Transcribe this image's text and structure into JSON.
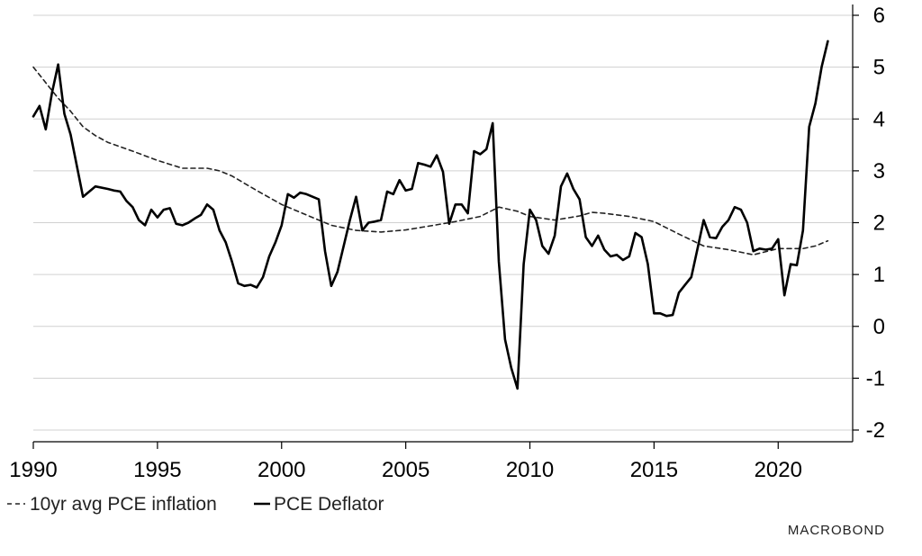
{
  "chart_data": {
    "type": "line",
    "title": "",
    "xlabel": "",
    "ylabel": "",
    "xlim": [
      1990,
      2023
    ],
    "ylim": [
      -2,
      6
    ],
    "x_ticks": [
      1990,
      1995,
      2000,
      2005,
      2010,
      2015,
      2020
    ],
    "x_tick_labels": [
      "1990",
      "1995",
      "2000",
      "2005",
      "2010",
      "2015",
      "2020"
    ],
    "y_ticks": [
      6,
      5,
      4,
      3,
      2,
      1,
      0,
      -1,
      -2
    ],
    "y_tick_labels": [
      "6",
      "5",
      "4",
      "3",
      "2",
      "1",
      "0",
      "-1",
      "-2"
    ],
    "y_axis_side": "right",
    "grid": "horizontal",
    "legend_position": "bottom-left",
    "series": [
      {
        "name": "10yr avg PCE inflation",
        "style": "dashed",
        "color": "#222222",
        "x": [
          1990.0,
          1990.5,
          1991.0,
          1991.5,
          1992.0,
          1992.5,
          1993.0,
          1994.0,
          1995.0,
          1996.0,
          1997.0,
          1997.5,
          1998.0,
          1999.0,
          2000.0,
          2001.0,
          2002.0,
          2003.0,
          2004.0,
          2005.0,
          2006.0,
          2007.0,
          2008.0,
          2008.75,
          2009.5,
          2010.0,
          2011.0,
          2012.0,
          2012.5,
          2013.0,
          2014.0,
          2015.0,
          2016.0,
          2017.0,
          2018.0,
          2019.0,
          2020.0,
          2021.0,
          2021.5,
          2022.0
        ],
        "values": [
          5.0,
          4.7,
          4.4,
          4.15,
          3.85,
          3.68,
          3.55,
          3.38,
          3.2,
          3.05,
          3.05,
          3.0,
          2.9,
          2.62,
          2.35,
          2.15,
          1.95,
          1.85,
          1.82,
          1.86,
          1.94,
          2.02,
          2.12,
          2.3,
          2.22,
          2.12,
          2.05,
          2.13,
          2.2,
          2.18,
          2.12,
          2.02,
          1.78,
          1.55,
          1.48,
          1.38,
          1.5,
          1.5,
          1.55,
          1.65
        ]
      },
      {
        "name": "PCE Deflator",
        "style": "solid",
        "color": "#000000",
        "x": [
          1990.0,
          1990.25,
          1990.5,
          1990.75,
          1991.0,
          1991.25,
          1991.5,
          1991.75,
          1992.0,
          1992.5,
          1993.0,
          1993.25,
          1993.5,
          1993.75,
          1994.0,
          1994.25,
          1994.5,
          1994.75,
          1995.0,
          1995.25,
          1995.5,
          1995.75,
          1996.0,
          1996.25,
          1996.5,
          1996.75,
          1997.0,
          1997.25,
          1997.5,
          1997.75,
          1998.0,
          1998.25,
          1998.5,
          1998.75,
          1999.0,
          1999.25,
          1999.5,
          1999.75,
          2000.0,
          2000.25,
          2000.5,
          2000.75,
          2001.0,
          2001.25,
          2001.5,
          2001.75,
          2002.0,
          2002.25,
          2002.5,
          2002.75,
          2003.0,
          2003.25,
          2003.5,
          2003.75,
          2004.0,
          2004.25,
          2004.5,
          2004.75,
          2005.0,
          2005.25,
          2005.5,
          2005.75,
          2006.0,
          2006.25,
          2006.5,
          2006.75,
          2007.0,
          2007.25,
          2007.5,
          2007.75,
          2008.0,
          2008.25,
          2008.5,
          2008.75,
          2009.0,
          2009.25,
          2009.5,
          2009.75,
          2010.0,
          2010.25,
          2010.5,
          2010.75,
          2011.0,
          2011.25,
          2011.5,
          2011.75,
          2012.0,
          2012.25,
          2012.5,
          2012.75,
          2013.0,
          2013.25,
          2013.5,
          2013.75,
          2014.0,
          2014.25,
          2014.5,
          2014.75,
          2015.0,
          2015.25,
          2015.5,
          2015.75,
          2016.0,
          2016.25,
          2016.5,
          2016.75,
          2017.0,
          2017.25,
          2017.5,
          2017.75,
          2018.0,
          2018.25,
          2018.5,
          2018.75,
          2019.0,
          2019.25,
          2019.5,
          2019.75,
          2020.0,
          2020.25,
          2020.5,
          2020.75,
          2021.0,
          2021.25,
          2021.5,
          2021.75,
          2022.0
        ],
        "values": [
          4.05,
          4.25,
          3.8,
          4.5,
          5.05,
          4.1,
          3.7,
          3.1,
          2.5,
          2.7,
          2.65,
          2.62,
          2.6,
          2.42,
          2.3,
          2.05,
          1.95,
          2.25,
          2.1,
          2.25,
          2.28,
          1.98,
          1.95,
          2.0,
          2.08,
          2.15,
          2.35,
          2.25,
          1.85,
          1.62,
          1.25,
          0.83,
          0.78,
          0.8,
          0.75,
          0.95,
          1.35,
          1.62,
          1.95,
          2.55,
          2.48,
          2.58,
          2.55,
          2.5,
          2.45,
          1.45,
          0.78,
          1.05,
          1.55,
          2.05,
          2.5,
          1.85,
          2.0,
          2.02,
          2.05,
          2.6,
          2.55,
          2.82,
          2.62,
          2.65,
          3.15,
          3.12,
          3.08,
          3.3,
          2.98,
          1.98,
          2.35,
          2.35,
          2.18,
          3.38,
          3.32,
          3.42,
          3.92,
          1.25,
          -0.25,
          -0.8,
          -1.2,
          1.2,
          2.25,
          2.05,
          1.55,
          1.4,
          1.75,
          2.7,
          2.95,
          2.65,
          2.45,
          1.72,
          1.55,
          1.75,
          1.48,
          1.35,
          1.38,
          1.28,
          1.35,
          1.8,
          1.72,
          1.2,
          0.25,
          0.25,
          0.2,
          0.22,
          0.65,
          0.8,
          0.95,
          1.5,
          2.05,
          1.72,
          1.7,
          1.92,
          2.05,
          2.3,
          2.25,
          2.0,
          1.45,
          1.5,
          1.48,
          1.5,
          1.68,
          0.6,
          1.2,
          1.18,
          1.85,
          3.85,
          4.3,
          5.0,
          5.5
        ]
      }
    ]
  },
  "legend": {
    "items": [
      {
        "label": "10yr avg PCE inflation",
        "style": "dashed"
      },
      {
        "label": "PCE Deflator",
        "style": "solid"
      }
    ]
  },
  "brand": {
    "text": "MACROBOND"
  },
  "colors": {
    "grid": "#d0d0d0",
    "axis": "#000000",
    "line": "#000000"
  }
}
